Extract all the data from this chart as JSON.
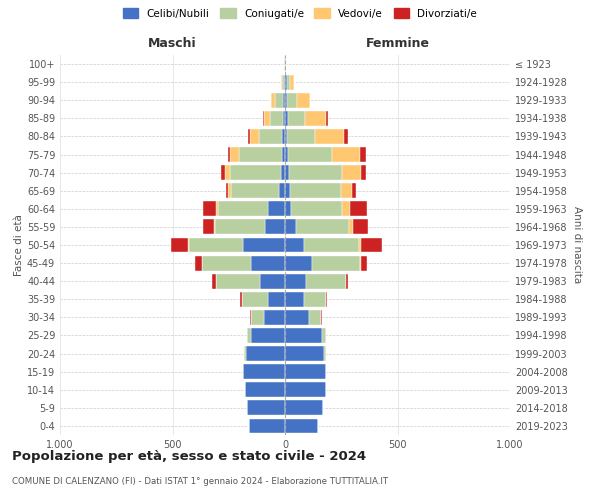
{
  "age_groups": [
    "0-4",
    "5-9",
    "10-14",
    "15-19",
    "20-24",
    "25-29",
    "30-34",
    "35-39",
    "40-44",
    "45-49",
    "50-54",
    "55-59",
    "60-64",
    "65-69",
    "70-74",
    "75-79",
    "80-84",
    "85-89",
    "90-94",
    "95-99",
    "100+"
  ],
  "birth_years": [
    "2019-2023",
    "2014-2018",
    "2009-2013",
    "2004-2008",
    "1999-2003",
    "1994-1998",
    "1989-1993",
    "1984-1988",
    "1979-1983",
    "1974-1978",
    "1969-1973",
    "1964-1968",
    "1959-1963",
    "1954-1958",
    "1949-1953",
    "1944-1948",
    "1939-1943",
    "1934-1938",
    "1929-1933",
    "1924-1928",
    "≤ 1923"
  ],
  "colors": {
    "celibi": "#4472c4",
    "coniugati": "#b8cfa0",
    "vedovi": "#ffc870",
    "divorziati": "#cc2222"
  },
  "legend_labels": [
    "Celibi/Nubili",
    "Coniugati/e",
    "Vedovi/e",
    "Divorziati/e"
  ],
  "title": "Popolazione per età, sesso e stato civile - 2024",
  "subtitle": "COMUNE DI CALENZANO (FI) - Dati ISTAT 1° gennaio 2024 - Elaborazione TUTTITALIA.IT",
  "xlabel_left": "Maschi",
  "xlabel_right": "Femmine",
  "ylabel_left": "Fasce di età",
  "ylabel_right": "Anni di nascita",
  "xlim": 1000,
  "maschi_celibi": [
    160,
    170,
    180,
    185,
    175,
    150,
    95,
    75,
    110,
    150,
    185,
    90,
    75,
    25,
    20,
    15,
    12,
    10,
    8,
    5,
    2
  ],
  "maschi_coniugati": [
    0,
    0,
    0,
    3,
    8,
    18,
    55,
    115,
    195,
    220,
    240,
    220,
    225,
    215,
    225,
    190,
    105,
    55,
    35,
    8,
    3
  ],
  "maschi_vedovi": [
    0,
    0,
    0,
    0,
    0,
    0,
    0,
    0,
    0,
    0,
    8,
    4,
    8,
    12,
    22,
    38,
    38,
    28,
    18,
    5,
    0
  ],
  "maschi_divorziati": [
    0,
    0,
    0,
    0,
    0,
    0,
    4,
    8,
    18,
    28,
    75,
    50,
    55,
    12,
    18,
    12,
    8,
    4,
    0,
    0,
    0
  ],
  "femmine_nubili": [
    145,
    170,
    180,
    180,
    175,
    165,
    105,
    85,
    95,
    120,
    85,
    48,
    28,
    22,
    18,
    12,
    10,
    12,
    10,
    8,
    2
  ],
  "femmine_coniugate": [
    0,
    0,
    0,
    3,
    8,
    18,
    55,
    95,
    175,
    215,
    245,
    235,
    225,
    225,
    235,
    195,
    125,
    75,
    45,
    12,
    3
  ],
  "femmine_vedove": [
    0,
    0,
    0,
    0,
    0,
    0,
    0,
    0,
    0,
    3,
    8,
    18,
    38,
    50,
    85,
    125,
    125,
    95,
    55,
    18,
    0
  ],
  "femmine_divorziate": [
    0,
    0,
    0,
    0,
    0,
    0,
    4,
    8,
    12,
    28,
    95,
    70,
    75,
    18,
    22,
    28,
    18,
    8,
    0,
    0,
    0
  ]
}
